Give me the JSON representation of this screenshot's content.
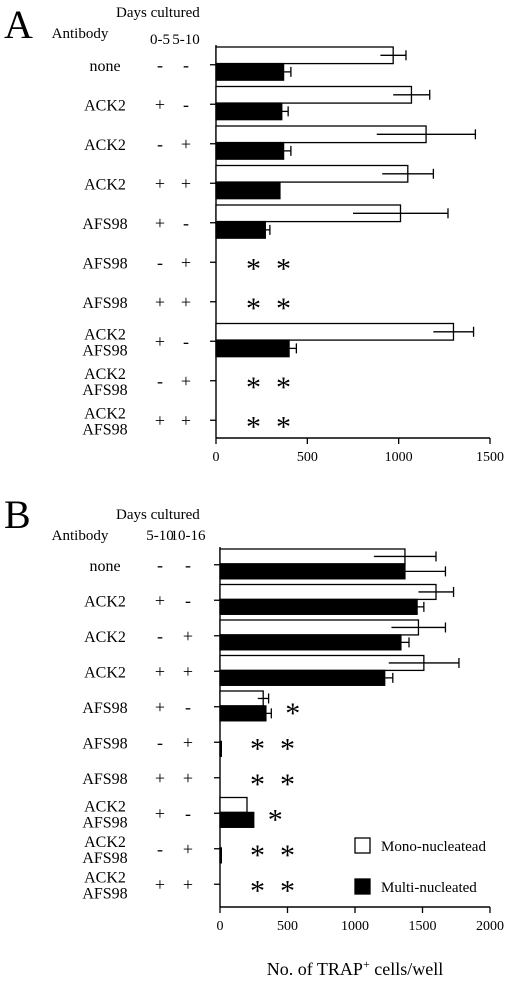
{
  "figure": {
    "legend": {
      "mono": "Mono-nucleatead",
      "multi": "Multi-nucleated"
    },
    "xlabel": "No. of TRAP",
    "xlabel_sup": "+",
    "xlabel_tail": " cells/well"
  },
  "chart_data": [
    {
      "type": "bar",
      "orientation": "horizontal",
      "panel_label": "A",
      "header": {
        "days": "Days cultured",
        "antibody": "Antibody",
        "col1": "0-5",
        "col2": "5-10"
      },
      "rows": [
        {
          "label": [
            "none"
          ],
          "col1": "-",
          "col2": "-",
          "mono": 970,
          "mono_err": 70,
          "multi": 370,
          "multi_err": 40
        },
        {
          "label": [
            "ACK2"
          ],
          "col1": "+",
          "col2": "-",
          "mono": 1070,
          "mono_err": 100,
          "multi": 360,
          "multi_err": 35
        },
        {
          "label": [
            "ACK2"
          ],
          "col1": "-",
          "col2": "+",
          "mono": 1150,
          "mono_err": 270,
          "multi": 370,
          "multi_err": 40
        },
        {
          "label": [
            "ACK2"
          ],
          "col1": "+",
          "col2": "+",
          "mono": 1050,
          "mono_err": 140,
          "multi": 350,
          "multi_err": 0
        },
        {
          "label": [
            "AFS98"
          ],
          "col1": "+",
          "col2": "-",
          "mono": 1010,
          "mono_err": 260,
          "multi": 270,
          "multi_err": 25
        },
        {
          "label": [
            "AFS98"
          ],
          "col1": "-",
          "col2": "+",
          "mono": 0,
          "mono_err": 0,
          "multi": 0,
          "multi_err": 0,
          "stars": "* *"
        },
        {
          "label": [
            "AFS98"
          ],
          "col1": "+",
          "col2": "+",
          "mono": 0,
          "mono_err": 0,
          "multi": 0,
          "multi_err": 0,
          "stars": "* *"
        },
        {
          "label": [
            "ACK2",
            "AFS98"
          ],
          "col1": "+",
          "col2": "-",
          "mono": 1300,
          "mono_err": 110,
          "multi": 400,
          "multi_err": 40
        },
        {
          "label": [
            "ACK2",
            "AFS98"
          ],
          "col1": "-",
          "col2": "+",
          "mono": 0,
          "mono_err": 0,
          "multi": 0,
          "multi_err": 0,
          "stars": "* *"
        },
        {
          "label": [
            "ACK2",
            "AFS98"
          ],
          "col1": "+",
          "col2": "+",
          "mono": 0,
          "mono_err": 0,
          "multi": 0,
          "multi_err": 0,
          "stars": "* *"
        }
      ],
      "xlim": [
        0,
        1500
      ],
      "ticks": [
        0,
        500,
        1000,
        1500
      ]
    },
    {
      "type": "bar",
      "orientation": "horizontal",
      "panel_label": "B",
      "header": {
        "days": "Days cultured",
        "antibody": "Antibody",
        "col1": "5-10",
        "col2": "10-16"
      },
      "rows": [
        {
          "label": [
            "none"
          ],
          "col1": "-",
          "col2": "-",
          "mono": 1370,
          "mono_err": 230,
          "multi": 1370,
          "multi_err": 300
        },
        {
          "label": [
            "ACK2"
          ],
          "col1": "+",
          "col2": "-",
          "mono": 1600,
          "mono_err": 130,
          "multi": 1460,
          "multi_err": 50
        },
        {
          "label": [
            "ACK2"
          ],
          "col1": "-",
          "col2": "+",
          "mono": 1470,
          "mono_err": 200,
          "multi": 1340,
          "multi_err": 60
        },
        {
          "label": [
            "ACK2"
          ],
          "col1": "+",
          "col2": "+",
          "mono": 1510,
          "mono_err": 260,
          "multi": 1220,
          "multi_err": 60
        },
        {
          "label": [
            "AFS98"
          ],
          "col1": "+",
          "col2": "-",
          "mono": 320,
          "mono_err": 40,
          "multi": 340,
          "multi_err": 40,
          "stars": "*"
        },
        {
          "label": [
            "AFS98"
          ],
          "col1": "-",
          "col2": "+",
          "mono": 0,
          "mono_err": 0,
          "multi": 10,
          "multi_err": 0,
          "stars": "* *"
        },
        {
          "label": [
            "AFS98"
          ],
          "col1": "+",
          "col2": "+",
          "mono": 0,
          "mono_err": 0,
          "multi": 0,
          "multi_err": 0,
          "stars": "* *"
        },
        {
          "label": [
            "ACK2",
            "AFS98"
          ],
          "col1": "+",
          "col2": "-",
          "mono": 200,
          "mono_err": 0,
          "multi": 250,
          "multi_err": 0,
          "stars": "*"
        },
        {
          "label": [
            "ACK2",
            "AFS98"
          ],
          "col1": "-",
          "col2": "+",
          "mono": 0,
          "mono_err": 0,
          "multi": 10,
          "multi_err": 0,
          "stars": "* *"
        },
        {
          "label": [
            "ACK2",
            "AFS98"
          ],
          "col1": "+",
          "col2": "+",
          "mono": 0,
          "mono_err": 0,
          "multi": 0,
          "multi_err": 0,
          "stars": "* *"
        }
      ],
      "xlim": [
        0,
        2000
      ],
      "ticks": [
        0,
        500,
        1000,
        1500,
        2000
      ],
      "legend_placement": "bottom-right"
    }
  ]
}
